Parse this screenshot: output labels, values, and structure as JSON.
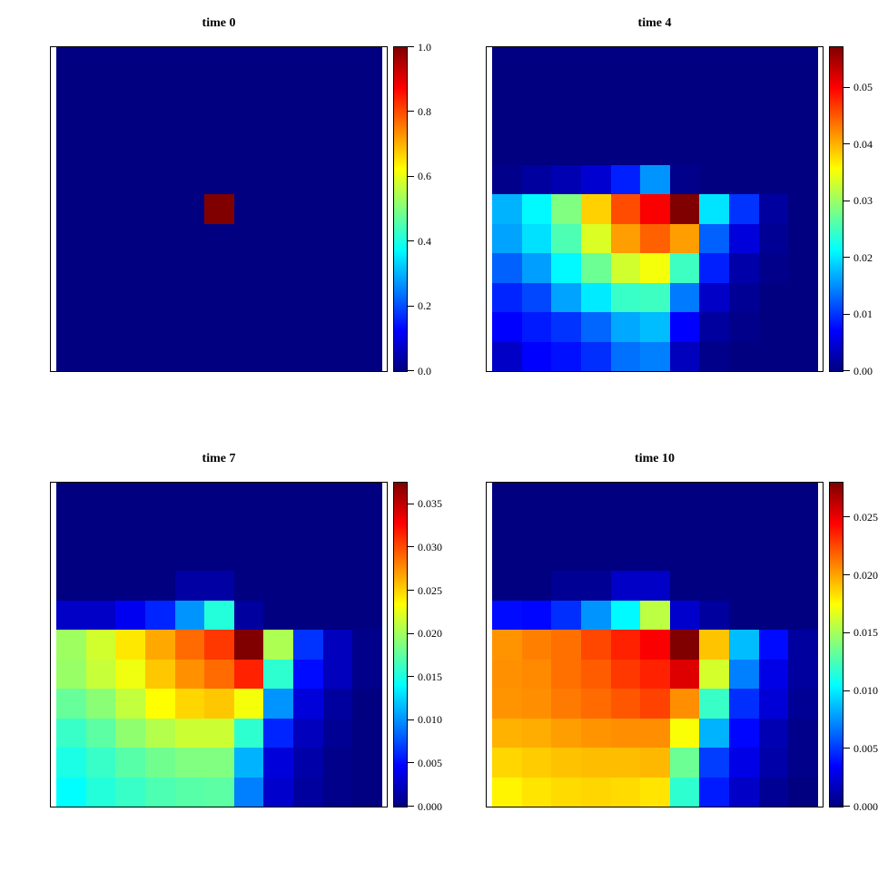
{
  "figure": {
    "background": "#ffffff",
    "colormap": "jet",
    "colormap_min_color": "#000080",
    "colormap_max_color": "#800000",
    "grid_rows": 11,
    "grid_cols": 11,
    "value_encoding": "cell value = fraction * scale_max"
  },
  "chart_data": [
    {
      "type": "heatmap",
      "title": "time 0",
      "colormap": "jet",
      "scale_max": 1.0,
      "colorbar_ticks": [
        "0.0",
        "0.2",
        "0.4",
        "0.6",
        "0.8",
        "1.0"
      ],
      "colorbar_tick_values": [
        0.0,
        0.2,
        0.4,
        0.6,
        0.8,
        1.0
      ],
      "legend_position": "right",
      "cells_fraction_of_scale_max": [
        [
          0,
          0,
          0,
          0,
          0,
          0,
          0,
          0,
          0,
          0,
          0
        ],
        [
          0,
          0,
          0,
          0,
          0,
          0,
          0,
          0,
          0,
          0,
          0
        ],
        [
          0,
          0,
          0,
          0,
          0,
          0,
          0,
          0,
          0,
          0,
          0
        ],
        [
          0,
          0,
          0,
          0,
          0,
          0,
          0,
          0,
          0,
          0,
          0
        ],
        [
          0,
          0,
          0,
          0,
          0,
          0,
          0,
          0,
          0,
          0,
          0
        ],
        [
          0,
          0,
          0,
          0,
          0,
          1.0,
          0,
          0,
          0,
          0,
          0
        ],
        [
          0,
          0,
          0,
          0,
          0,
          0,
          0,
          0,
          0,
          0,
          0
        ],
        [
          0,
          0,
          0,
          0,
          0,
          0,
          0,
          0,
          0,
          0,
          0
        ],
        [
          0,
          0,
          0,
          0,
          0,
          0,
          0,
          0,
          0,
          0,
          0
        ],
        [
          0,
          0,
          0,
          0,
          0,
          0,
          0,
          0,
          0,
          0,
          0
        ],
        [
          0,
          0,
          0,
          0,
          0,
          0,
          0,
          0,
          0,
          0,
          0
        ]
      ]
    },
    {
      "type": "heatmap",
      "title": "time 4",
      "colormap": "jet",
      "scale_max": 0.0572,
      "colorbar_ticks": [
        "0.00",
        "0.01",
        "0.02",
        "0.03",
        "0.04",
        "0.05"
      ],
      "colorbar_tick_values": [
        0.0,
        0.01,
        0.02,
        0.03,
        0.04,
        0.05
      ],
      "legend_position": "right",
      "cells_fraction_of_scale_max": [
        [
          0,
          0,
          0,
          0,
          0,
          0,
          0,
          0,
          0,
          0,
          0
        ],
        [
          0,
          0,
          0,
          0,
          0,
          0,
          0,
          0,
          0,
          0,
          0
        ],
        [
          0,
          0,
          0,
          0,
          0,
          0,
          0,
          0,
          0,
          0,
          0
        ],
        [
          0,
          0,
          0,
          0,
          0,
          0,
          0,
          0,
          0,
          0,
          0
        ],
        [
          0.01,
          0.03,
          0.05,
          0.08,
          0.155,
          0.27,
          0.01,
          0,
          0,
          0,
          0
        ],
        [
          0.3,
          0.37,
          0.5,
          0.67,
          0.8,
          0.88,
          1.0,
          0.35,
          0.175,
          0.03,
          0
        ],
        [
          0.285,
          0.345,
          0.45,
          0.59,
          0.72,
          0.78,
          0.72,
          0.22,
          0.09,
          0.02,
          0
        ],
        [
          0.22,
          0.28,
          0.37,
          0.48,
          0.58,
          0.615,
          0.435,
          0.155,
          0.04,
          0.01,
          0
        ],
        [
          0.16,
          0.195,
          0.285,
          0.355,
          0.43,
          0.435,
          0.245,
          0.07,
          0.02,
          0,
          0
        ],
        [
          0.125,
          0.15,
          0.175,
          0.225,
          0.29,
          0.31,
          0.125,
          0.03,
          0.01,
          0,
          0
        ],
        [
          0.07,
          0.125,
          0.14,
          0.17,
          0.235,
          0.25,
          0.06,
          0.01,
          0,
          0,
          0
        ]
      ]
    },
    {
      "type": "heatmap",
      "title": "time 7",
      "colormap": "jet",
      "scale_max": 0.0375,
      "colorbar_ticks": [
        "0.000",
        "0.005",
        "0.010",
        "0.015",
        "0.020",
        "0.025",
        "0.030",
        "0.035"
      ],
      "colorbar_tick_values": [
        0.0,
        0.005,
        0.01,
        0.015,
        0.02,
        0.025,
        0.03,
        0.035
      ],
      "legend_position": "right",
      "cells_fraction_of_scale_max": [
        [
          0,
          0,
          0,
          0,
          0,
          0,
          0,
          0,
          0,
          0,
          0
        ],
        [
          0,
          0,
          0,
          0,
          0,
          0,
          0,
          0,
          0,
          0,
          0
        ],
        [
          0,
          0,
          0,
          0,
          0,
          0,
          0,
          0,
          0,
          0,
          0
        ],
        [
          0,
          0,
          0,
          0,
          0.035,
          0.035,
          0,
          0,
          0,
          0,
          0
        ],
        [
          0.07,
          0.07,
          0.11,
          0.16,
          0.27,
          0.41,
          0.03,
          0,
          0,
          0,
          0
        ],
        [
          0.53,
          0.58,
          0.6475,
          0.71,
          0.77,
          0.82,
          1.0,
          0.545,
          0.175,
          0.06,
          0.01
        ],
        [
          0.525,
          0.57,
          0.61,
          0.68,
          0.7325,
          0.77,
          0.8425,
          0.42,
          0.135,
          0.06,
          0.01
        ],
        [
          0.475,
          0.51,
          0.565,
          0.625,
          0.665,
          0.68,
          0.615,
          0.27,
          0.09,
          0.03,
          0
        ],
        [
          0.43,
          0.465,
          0.515,
          0.55,
          0.575,
          0.575,
          0.42,
          0.16,
          0.06,
          0.02,
          0
        ],
        [
          0.4,
          0.43,
          0.46,
          0.485,
          0.5,
          0.5,
          0.3,
          0.09,
          0.04,
          0.01,
          0
        ],
        [
          0.375,
          0.41,
          0.43,
          0.45,
          0.46,
          0.465,
          0.25,
          0.075,
          0.03,
          0.01,
          0
        ]
      ]
    },
    {
      "type": "heatmap",
      "title": "time 10",
      "colormap": "jet",
      "scale_max": 0.028,
      "colorbar_ticks": [
        "0.000",
        "0.005",
        "0.010",
        "0.015",
        "0.020",
        "0.025"
      ],
      "colorbar_tick_values": [
        0.0,
        0.005,
        0.01,
        0.015,
        0.02,
        0.025
      ],
      "legend_position": "right",
      "cells_fraction_of_scale_max": [
        [
          0,
          0,
          0,
          0,
          0,
          0,
          0,
          0,
          0,
          0,
          0
        ],
        [
          0,
          0,
          0,
          0,
          0,
          0,
          0,
          0,
          0,
          0,
          0
        ],
        [
          0,
          0,
          0,
          0,
          0,
          0,
          0,
          0,
          0,
          0,
          0
        ],
        [
          0,
          0,
          0.02,
          0.02,
          0.07,
          0.07,
          0,
          0,
          0,
          0,
          0
        ],
        [
          0.135,
          0.13,
          0.17,
          0.27,
          0.37,
          0.56,
          0.075,
          0.03,
          0,
          0,
          0
        ],
        [
          0.73,
          0.75,
          0.765,
          0.805,
          0.8425,
          0.88,
          1.0,
          0.6825,
          0.31,
          0.135,
          0.03
        ],
        [
          0.7325,
          0.74,
          0.765,
          0.785,
          0.82,
          0.8425,
          0.9075,
          0.5825,
          0.25,
          0.1,
          0.03
        ],
        [
          0.73,
          0.735,
          0.755,
          0.77,
          0.79,
          0.81,
          0.735,
          0.43,
          0.17,
          0.085,
          0.02
        ],
        [
          0.7,
          0.705,
          0.72,
          0.73,
          0.735,
          0.735,
          0.62,
          0.3,
          0.13,
          0.05,
          0.01
        ],
        [
          0.665,
          0.675,
          0.685,
          0.69,
          0.69,
          0.695,
          0.48,
          0.185,
          0.1,
          0.04,
          0.01
        ],
        [
          0.635,
          0.65,
          0.66,
          0.665,
          0.66,
          0.65,
          0.42,
          0.15,
          0.07,
          0.02,
          0
        ]
      ]
    }
  ]
}
